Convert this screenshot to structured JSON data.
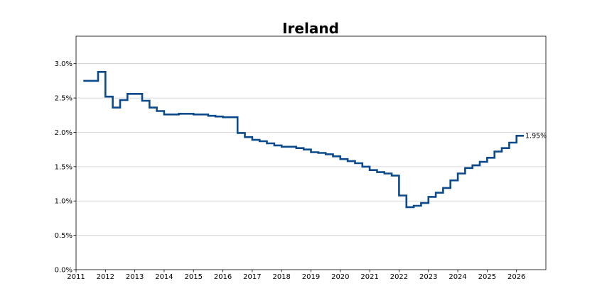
{
  "chart_data": {
    "type": "line",
    "title": "Ireland",
    "xlabel": "",
    "ylabel": "",
    "step": true,
    "grid": "horizontal",
    "xlim": [
      2011,
      2027
    ],
    "ylim": [
      0,
      3.4
    ],
    "x_ticks": [
      2011,
      2012,
      2013,
      2014,
      2015,
      2016,
      2017,
      2018,
      2019,
      2020,
      2021,
      2022,
      2023,
      2024,
      2025,
      2026
    ],
    "y_ticks": [
      0,
      0.5,
      1.0,
      1.5,
      2.0,
      2.5,
      3.0
    ],
    "y_tick_labels": [
      "0.0%",
      "0.5%",
      "1.0%",
      "1.5%",
      "2.0%",
      "2.5%",
      "3.0%"
    ],
    "series": [
      {
        "color": "#0b4a8b",
        "end_label": "1.95%",
        "points": [
          [
            2011.25,
            2.75
          ],
          [
            2011.75,
            2.88
          ],
          [
            2012.0,
            2.52
          ],
          [
            2012.25,
            2.36
          ],
          [
            2012.5,
            2.47
          ],
          [
            2012.75,
            2.56
          ],
          [
            2013.25,
            2.46
          ],
          [
            2013.5,
            2.36
          ],
          [
            2013.75,
            2.31
          ],
          [
            2014.0,
            2.26
          ],
          [
            2014.5,
            2.27
          ],
          [
            2015.0,
            2.26
          ],
          [
            2015.5,
            2.24
          ],
          [
            2015.75,
            2.23
          ],
          [
            2016.0,
            2.22
          ],
          [
            2016.5,
            1.99
          ],
          [
            2016.75,
            1.93
          ],
          [
            2017.0,
            1.89
          ],
          [
            2017.25,
            1.87
          ],
          [
            2017.5,
            1.84
          ],
          [
            2017.75,
            1.81
          ],
          [
            2018.0,
            1.79
          ],
          [
            2018.5,
            1.77
          ],
          [
            2018.75,
            1.75
          ],
          [
            2019.0,
            1.71
          ],
          [
            2019.25,
            1.7
          ],
          [
            2019.5,
            1.68
          ],
          [
            2019.75,
            1.65
          ],
          [
            2020.0,
            1.61
          ],
          [
            2020.25,
            1.58
          ],
          [
            2020.5,
            1.55
          ],
          [
            2020.75,
            1.5
          ],
          [
            2021.0,
            1.45
          ],
          [
            2021.25,
            1.42
          ],
          [
            2021.5,
            1.4
          ],
          [
            2021.75,
            1.37
          ],
          [
            2022.0,
            1.08
          ],
          [
            2022.25,
            0.91
          ],
          [
            2022.5,
            0.93
          ],
          [
            2022.75,
            0.97
          ],
          [
            2023.0,
            1.06
          ],
          [
            2023.25,
            1.12
          ],
          [
            2023.5,
            1.19
          ],
          [
            2023.75,
            1.3
          ],
          [
            2024.0,
            1.4
          ],
          [
            2024.25,
            1.48
          ],
          [
            2024.5,
            1.52
          ],
          [
            2024.75,
            1.57
          ],
          [
            2025.0,
            1.63
          ],
          [
            2025.25,
            1.72
          ],
          [
            2025.5,
            1.77
          ],
          [
            2025.75,
            1.85
          ],
          [
            2026.0,
            1.95
          ],
          [
            2026.25,
            1.95
          ]
        ]
      }
    ]
  }
}
